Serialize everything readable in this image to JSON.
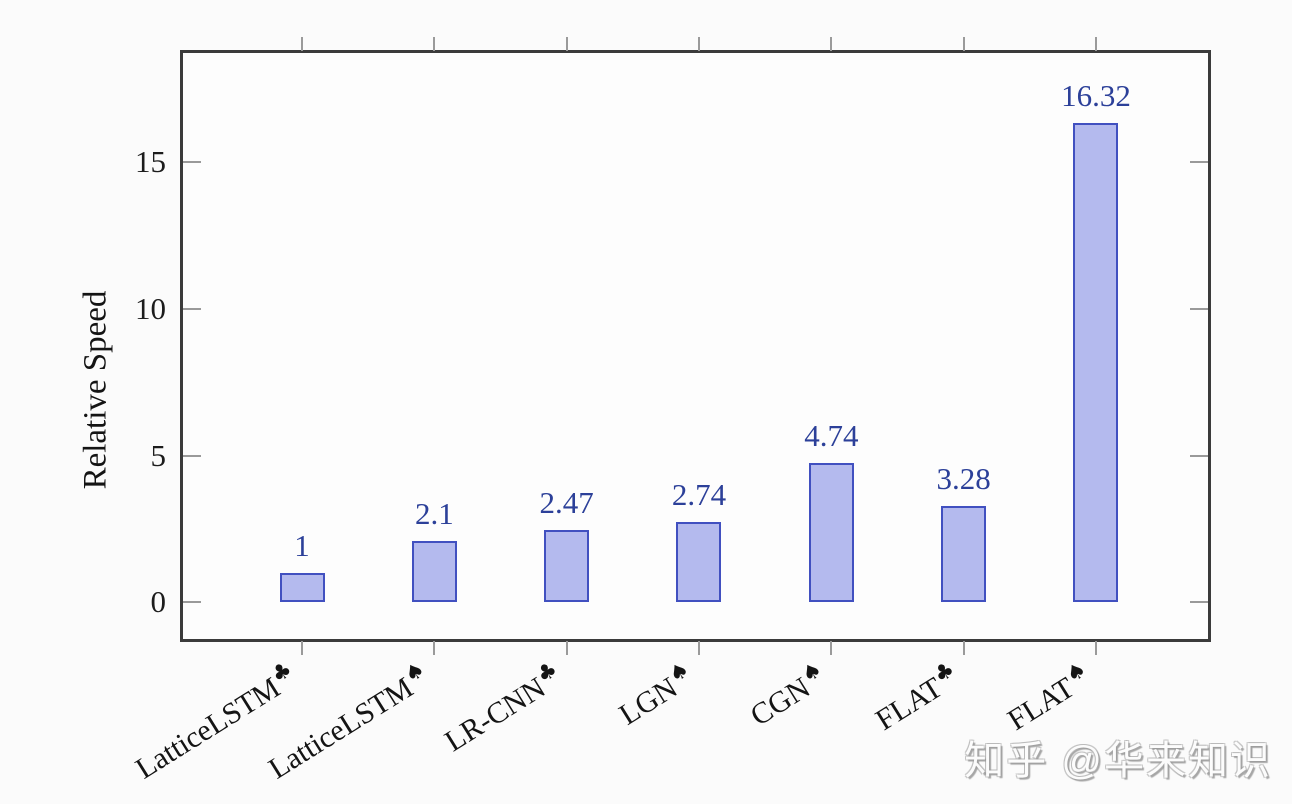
{
  "chart_data": {
    "type": "bar",
    "title": "",
    "xlabel": "",
    "ylabel": "Relative Speed",
    "categories": [
      "LatticeLSTM",
      "LatticeLSTM",
      "LR-CNN",
      "LGN",
      "CGN",
      "FLAT",
      "FLAT"
    ],
    "suits": [
      "♣",
      "♠",
      "♣",
      "♠",
      "♠",
      "♣",
      "♠"
    ],
    "suit_names": [
      "club",
      "spade",
      "club",
      "spade",
      "spade",
      "club",
      "spade"
    ],
    "values": [
      1,
      2.1,
      2.47,
      2.74,
      4.74,
      3.28,
      16.32
    ],
    "value_labels": [
      "1",
      "2.1",
      "2.47",
      "2.74",
      "4.74",
      "3.28",
      "16.32"
    ],
    "yticks": [
      0,
      5,
      10,
      15
    ],
    "ytick_labels": [
      "0",
      "5",
      "10",
      "15"
    ],
    "ylim": [
      -1.25,
      18.71
    ],
    "grid": false,
    "legend": null,
    "colors": {
      "bar_fill": "#b4baee",
      "bar_border": "#4150c0",
      "value_label": "#2c4099",
      "axis": "#3b3b3b",
      "tick": "#9a9a9a",
      "text": "#1c1c1c"
    }
  },
  "watermark": {
    "text": "知乎 @华来知识"
  }
}
